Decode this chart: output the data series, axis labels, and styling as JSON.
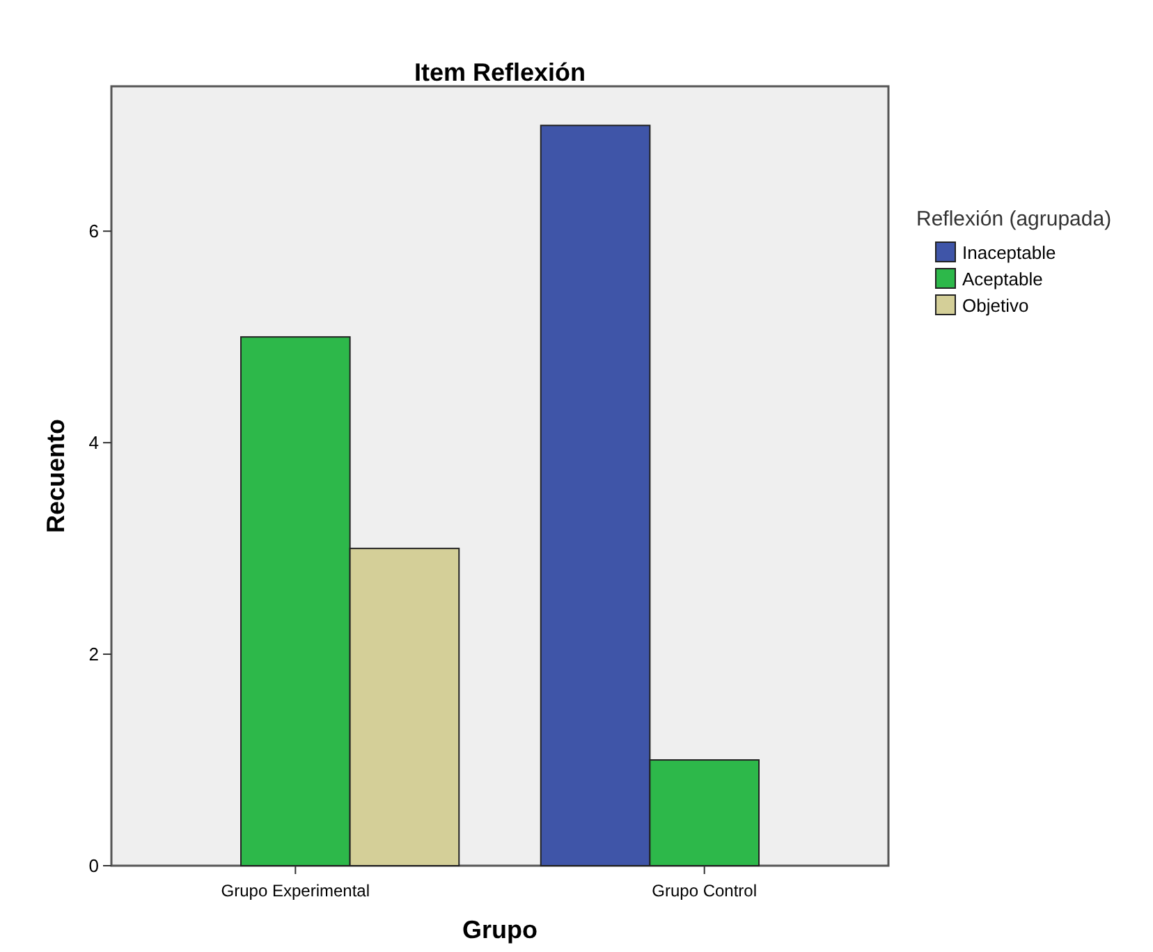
{
  "chart_data": {
    "type": "bar",
    "title": "Item Reflexión",
    "xlabel": "Grupo",
    "ylabel": "Recuento",
    "legend_title": "Reflexión (agrupada)",
    "categories": [
      "Grupo Experimental",
      "Grupo Control"
    ],
    "series": [
      {
        "name": "Inaceptable",
        "color": "#3f55a8",
        "values": [
          0,
          7
        ]
      },
      {
        "name": "Aceptable",
        "color": "#2db84a",
        "values": [
          5,
          1
        ]
      },
      {
        "name": "Objetivo",
        "color": "#d4cf98",
        "values": [
          3,
          0
        ]
      }
    ],
    "ylim": [
      0,
      7.37
    ],
    "yticks": [
      0,
      2,
      4,
      6
    ],
    "grid": false,
    "legend": "right"
  }
}
